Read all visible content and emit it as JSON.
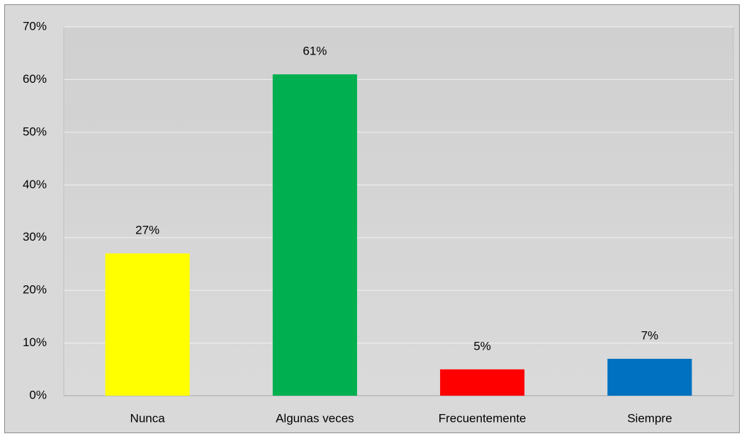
{
  "chart_data": {
    "type": "bar",
    "categories": [
      "Nunca",
      "Algunas veces",
      "Frecuentemente",
      "Siempre"
    ],
    "values": [
      27,
      61,
      5,
      7
    ],
    "value_labels": [
      "27%",
      "61%",
      "5%",
      "7%"
    ],
    "colors": [
      "#ffff00",
      "#00b050",
      "#ff0000",
      "#0070c0"
    ],
    "ylim": [
      0,
      70
    ],
    "yticks": [
      {
        "value": 0,
        "label": "0%"
      },
      {
        "value": 10,
        "label": "10%"
      },
      {
        "value": 20,
        "label": "20%"
      },
      {
        "value": 30,
        "label": "30%"
      },
      {
        "value": 40,
        "label": "40%"
      },
      {
        "value": 50,
        "label": "50%"
      },
      {
        "value": 60,
        "label": "60%"
      },
      {
        "value": 70,
        "label": "70%"
      }
    ],
    "grid": true
  }
}
